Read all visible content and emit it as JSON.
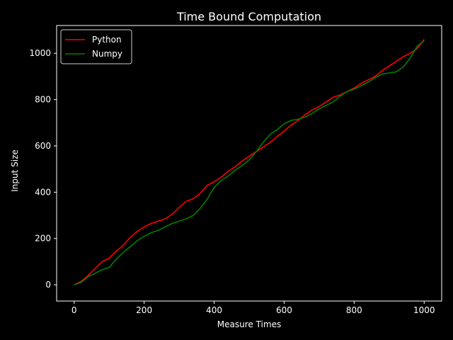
{
  "chart_data": {
    "type": "line",
    "title": "Time Bound Computation",
    "xlabel": "Measure Times",
    "ylabel": "Input Size",
    "xlim": [
      -50,
      1050
    ],
    "ylim": [
      -70,
      1120
    ],
    "xticks": [
      0,
      200,
      400,
      600,
      800,
      1000
    ],
    "yticks": [
      0,
      200,
      400,
      600,
      800,
      1000
    ],
    "grid": false,
    "legend_position": "top-left",
    "background_color": "#000000",
    "foreground_color": "#ffffff",
    "series": [
      {
        "name": "Python",
        "color": "#ff0000",
        "x": [
          0,
          20,
          40,
          60,
          80,
          100,
          120,
          140,
          160,
          180,
          200,
          220,
          240,
          260,
          280,
          300,
          320,
          340,
          360,
          380,
          400,
          420,
          440,
          460,
          480,
          500,
          520,
          540,
          560,
          580,
          600,
          620,
          640,
          660,
          680,
          700,
          720,
          740,
          760,
          780,
          800,
          820,
          840,
          860,
          880,
          900,
          920,
          940,
          960,
          980,
          1000
        ],
        "y": [
          0,
          15,
          40,
          70,
          100,
          115,
          145,
          170,
          205,
          230,
          250,
          265,
          275,
          285,
          305,
          335,
          360,
          372,
          395,
          430,
          445,
          465,
          490,
          510,
          535,
          555,
          575,
          595,
          615,
          640,
          665,
          690,
          710,
          735,
          755,
          770,
          790,
          810,
          820,
          835,
          850,
          870,
          885,
          900,
          925,
          945,
          965,
          985,
          1000,
          1020,
          1060
        ]
      },
      {
        "name": "Numpy",
        "color": "#008000",
        "x": [
          0,
          20,
          40,
          60,
          80,
          100,
          120,
          140,
          160,
          180,
          200,
          220,
          240,
          260,
          280,
          300,
          320,
          340,
          360,
          380,
          400,
          420,
          440,
          460,
          480,
          500,
          520,
          540,
          560,
          580,
          600,
          620,
          640,
          660,
          680,
          700,
          720,
          740,
          760,
          780,
          800,
          820,
          840,
          860,
          880,
          900,
          920,
          940,
          960,
          980,
          1000
        ],
        "y": [
          0,
          10,
          35,
          50,
          65,
          75,
          110,
          140,
          165,
          190,
          210,
          225,
          235,
          250,
          265,
          275,
          285,
          300,
          330,
          370,
          420,
          450,
          470,
          495,
          515,
          540,
          575,
          615,
          650,
          670,
          695,
          710,
          715,
          725,
          740,
          760,
          775,
          790,
          815,
          835,
          845,
          860,
          875,
          895,
          910,
          915,
          920,
          940,
          980,
          1030,
          1055
        ]
      }
    ]
  }
}
